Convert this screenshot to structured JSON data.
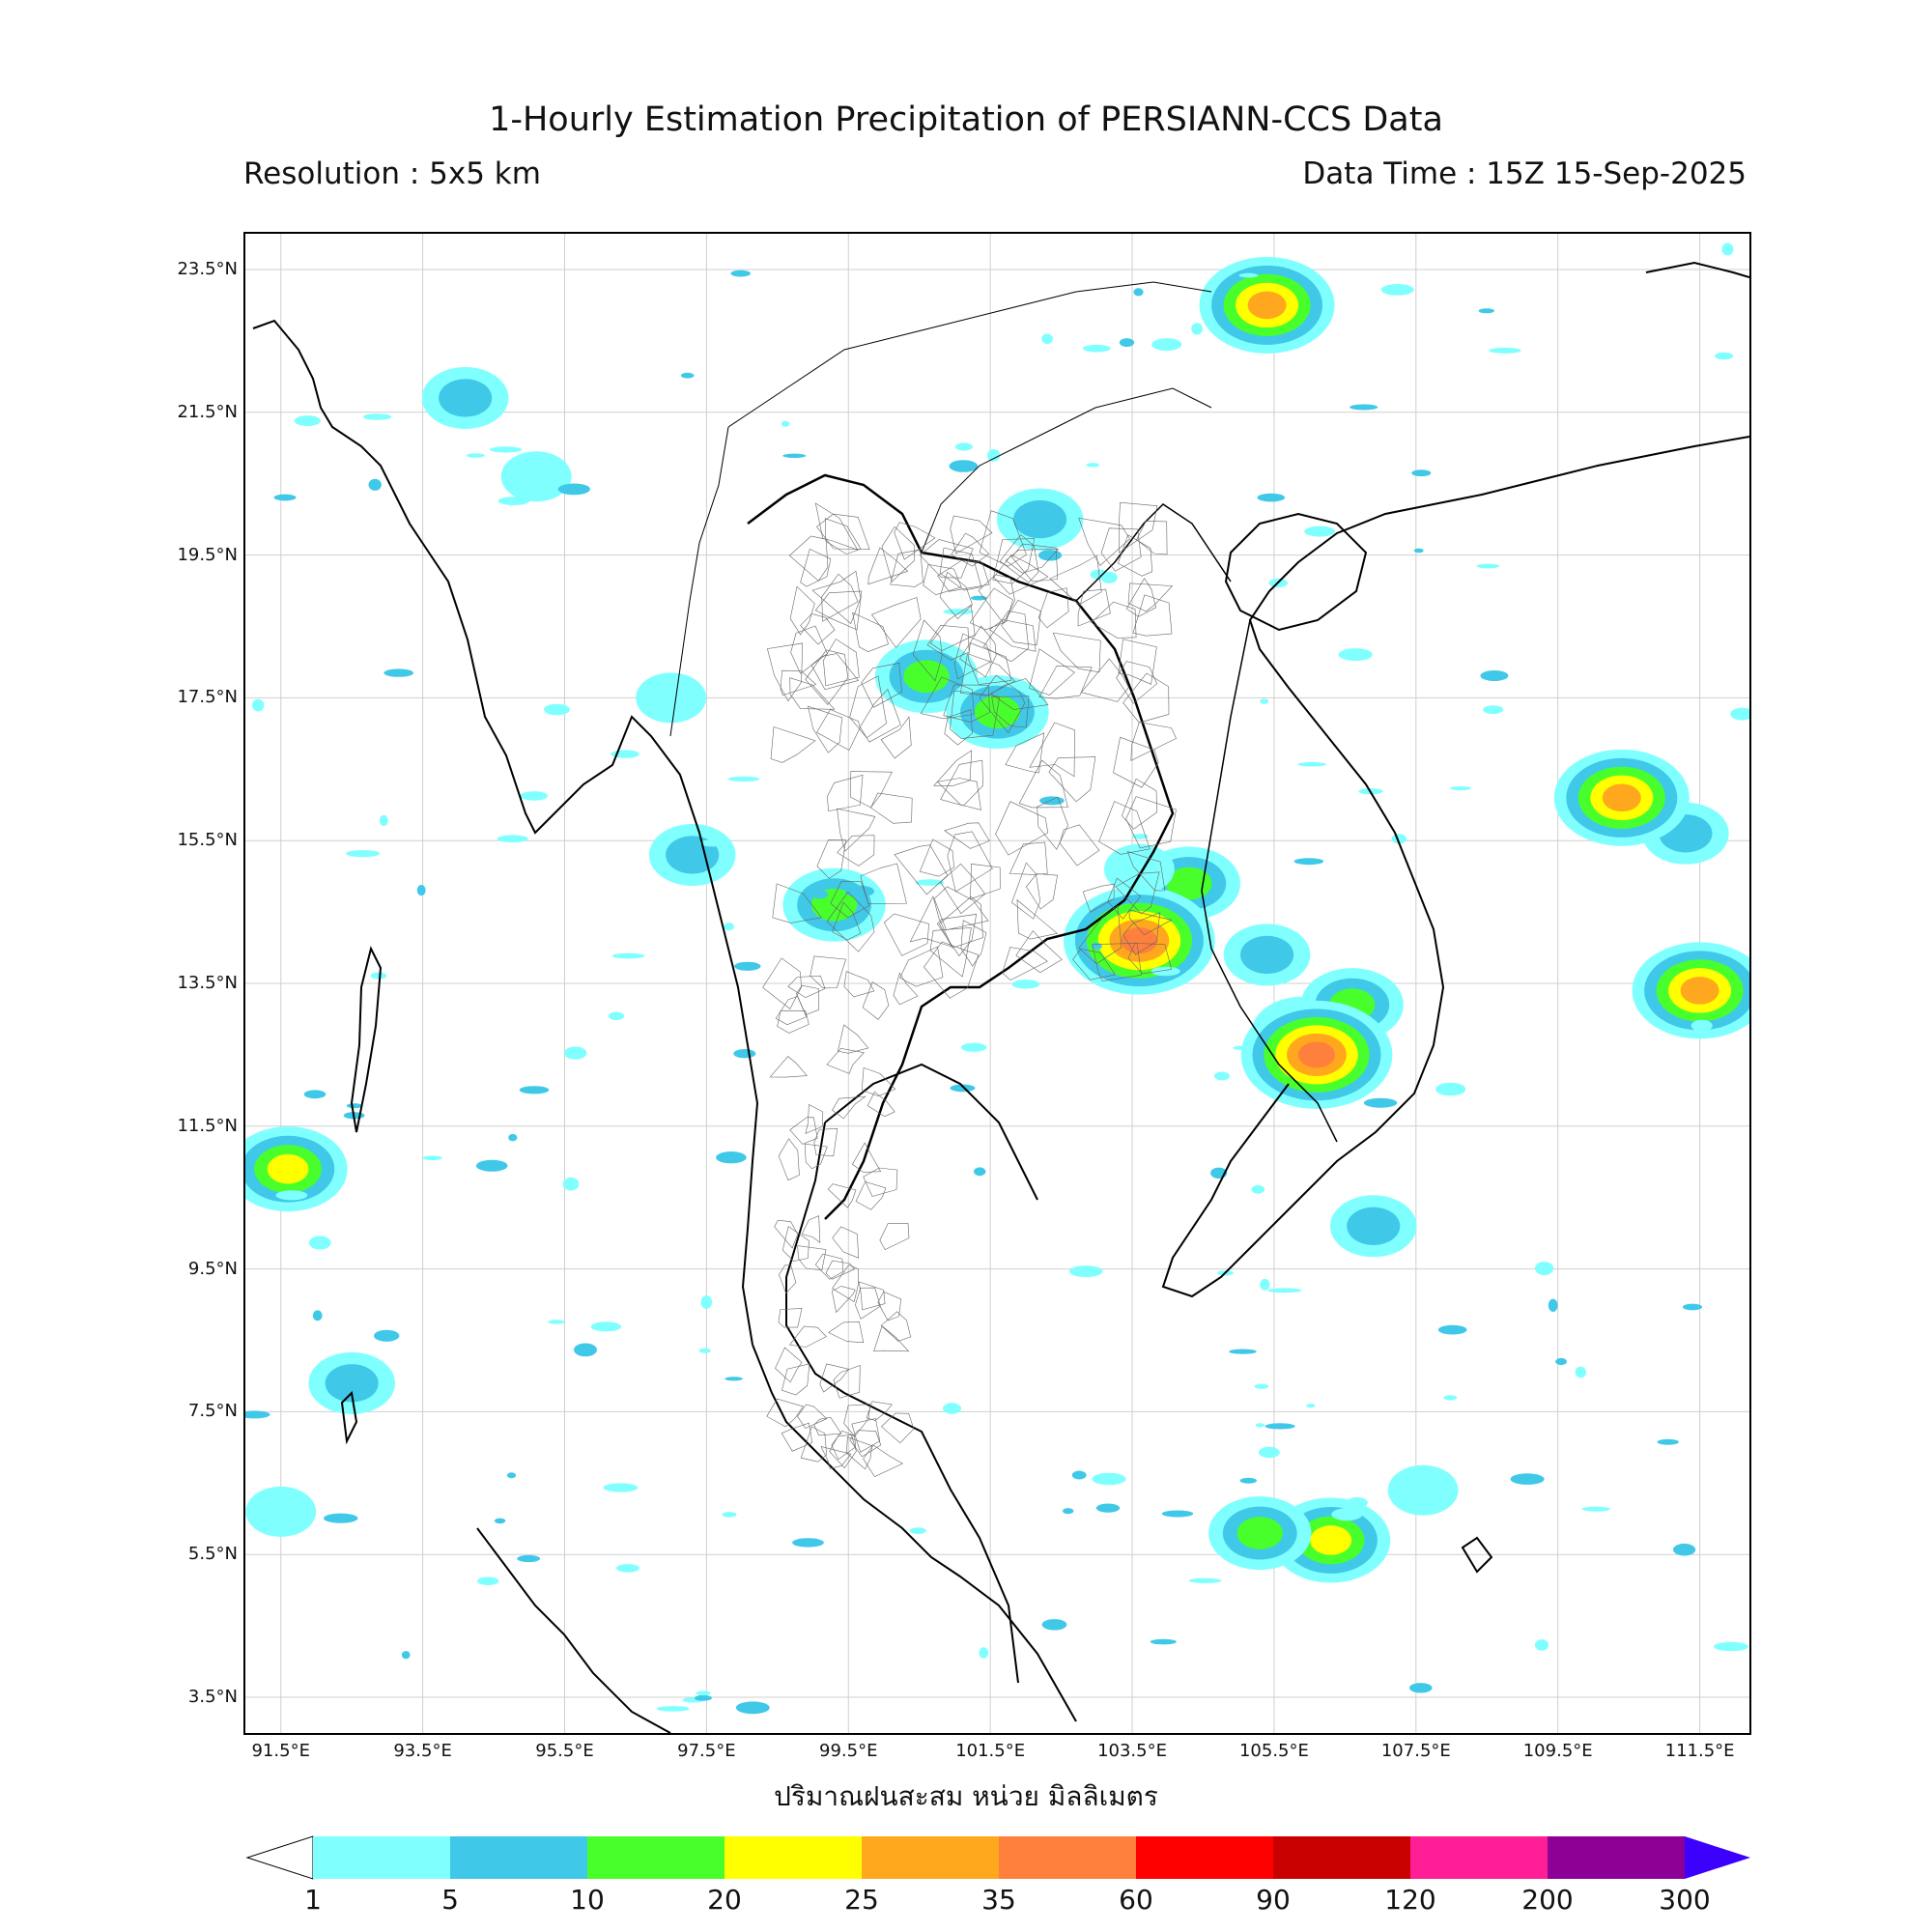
{
  "title": "1-Hourly Estimation Precipitation of PERSIANN-CCS Data",
  "resolution": "Resolution : 5x5 km",
  "data_time": "Data Time : 15Z 15-Sep-2025",
  "xlabel": "ปริมาณฝนสะสม หน่วย มิลลิเมตร",
  "map": {
    "lat_ticks": [
      "23.5°N",
      "21.5°N",
      "19.5°N",
      "17.5°N",
      "15.5°N",
      "13.5°N",
      "11.5°N",
      "9.5°N",
      "7.5°N",
      "5.5°N",
      "3.5°N"
    ],
    "lon_ticks": [
      "91.5°E",
      "93.5°E",
      "95.5°E",
      "97.5°E",
      "99.5°E",
      "101.5°E",
      "103.5°E",
      "105.5°E",
      "107.5°E",
      "109.5°E",
      "111.5°E"
    ],
    "extent": {
      "lon_min": 91.0,
      "lon_max": 112.2,
      "lat_min": 3.0,
      "lat_max": 24.0
    },
    "grid": true
  },
  "colorbar": {
    "labels": [
      "1",
      "5",
      "10",
      "20",
      "25",
      "35",
      "60",
      "90",
      "120",
      "200",
      "300"
    ],
    "colors": [
      "#80ffff",
      "#40c8e8",
      "#48ff2c",
      "#ffff00",
      "#ffa81e",
      "#ff7f3c",
      "#ff0000",
      "#c80000",
      "#ff1e96",
      "#8c0096"
    ],
    "extend_max_color": "#3c00ff"
  },
  "rain_cells": [
    {
      "lon": 105.9,
      "lat": 12.8,
      "level": 2
    },
    {
      "lon": 106.6,
      "lat": 13.2,
      "level": 2
    },
    {
      "lon": 99.3,
      "lat": 14.6,
      "level": 2
    },
    {
      "lon": 100.6,
      "lat": 17.8,
      "level": 2
    },
    {
      "lon": 101.6,
      "lat": 17.3,
      "level": 2
    },
    {
      "lon": 104.3,
      "lat": 14.9,
      "level": 2
    },
    {
      "lon": 97.3,
      "lat": 15.3,
      "level": 1
    },
    {
      "lon": 102.2,
      "lat": 20.0,
      "level": 1
    },
    {
      "lon": 94.1,
      "lat": 21.7,
      "level": 1
    },
    {
      "lon": 95.1,
      "lat": 20.6,
      "level": 0
    },
    {
      "lon": 92.5,
      "lat": 7.9,
      "level": 1
    },
    {
      "lon": 91.5,
      "lat": 6.1,
      "level": 0
    },
    {
      "lon": 105.4,
      "lat": 13.9,
      "level": 1
    },
    {
      "lon": 106.9,
      "lat": 10.1,
      "level": 1
    },
    {
      "lon": 111.3,
      "lat": 15.6,
      "level": 1
    },
    {
      "lon": 111.5,
      "lat": 13.4,
      "level": 4
    },
    {
      "lon": 110.4,
      "lat": 16.1,
      "level": 4
    },
    {
      "lon": 103.6,
      "lat": 14.1,
      "level": 5
    },
    {
      "lon": 106.1,
      "lat": 12.5,
      "level": 5
    },
    {
      "lon": 106.3,
      "lat": 5.7,
      "level": 3
    },
    {
      "lon": 105.3,
      "lat": 5.8,
      "level": 2
    },
    {
      "lon": 107.6,
      "lat": 6.4,
      "level": 0
    },
    {
      "lon": 91.6,
      "lat": 10.9,
      "level": 3
    },
    {
      "lon": 105.4,
      "lat": 23.0,
      "level": 4
    },
    {
      "lon": 97.0,
      "lat": 17.5,
      "level": 0
    },
    {
      "lon": 103.6,
      "lat": 15.1,
      "level": 0
    }
  ]
}
